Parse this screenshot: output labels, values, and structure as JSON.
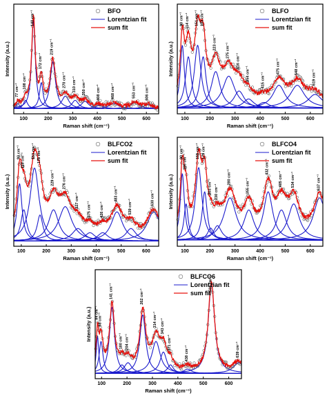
{
  "colors": {
    "lorentzian": "#1a1acc",
    "sum": "#e8100c",
    "points": "#666666"
  },
  "chart_data": [
    {
      "type": "line",
      "id": "bfo",
      "legend": [
        "BFO",
        "Lorentzian fit",
        "sum fit"
      ],
      "xlabel": "Raman shift (cm⁻¹)",
      "ylabel": "Intensity (a.u.)",
      "xlim": [
        60,
        650
      ],
      "xticks": [
        100,
        200,
        300,
        400,
        500,
        600
      ],
      "baseline": 0.05,
      "peak_labels": [
        "77 cm⁻¹",
        "108 cm⁻¹",
        "140 cm⁻¹",
        "172 cm⁻¹",
        "219 cm⁻¹",
        "270 cm⁻¹",
        "310 cm⁻¹",
        "350 cm⁻¹",
        "408 cm⁻¹",
        "468 cm⁻¹",
        "553 cm⁻¹",
        "606 cm⁻¹"
      ],
      "peaks": [
        {
          "x": 77,
          "amp": 0.05,
          "w": 7
        },
        {
          "x": 108,
          "amp": 0.08,
          "w": 10
        },
        {
          "x": 140,
          "amp": 0.85,
          "w": 9
        },
        {
          "x": 172,
          "amp": 0.25,
          "w": 9
        },
        {
          "x": 219,
          "amp": 0.45,
          "w": 13
        },
        {
          "x": 270,
          "amp": 0.12,
          "w": 18
        },
        {
          "x": 310,
          "amp": 0.08,
          "w": 16
        },
        {
          "x": 350,
          "amp": 0.07,
          "w": 18
        },
        {
          "x": 408,
          "amp": 0.03,
          "w": 20
        },
        {
          "x": 468,
          "amp": 0.05,
          "w": 22
        },
        {
          "x": 553,
          "amp": 0.06,
          "w": 20
        },
        {
          "x": 606,
          "amp": 0.04,
          "w": 18
        }
      ]
    },
    {
      "type": "line",
      "id": "blfo",
      "legend": [
        "BLFO",
        "Lorentzian fit",
        "sum fit"
      ],
      "xlabel": "Raman shift (cm⁻¹)",
      "ylabel": "Intensity (a.u.)",
      "xlim": [
        70,
        650
      ],
      "xticks": [
        100,
        200,
        300,
        400,
        500,
        600
      ],
      "baseline": 0.05,
      "peak_labels": [
        "90 cm⁻¹",
        "114 cm⁻¹",
        "151 cm⁻¹",
        "173 cm⁻¹",
        "223 cm⁻¹",
        "275 cm⁻¹",
        "316 cm⁻¹",
        "354 cm⁻¹",
        "415 cm⁻¹",
        "475 cm⁻¹",
        "548 cm⁻¹",
        "619 cm⁻¹"
      ],
      "peaks": [
        {
          "x": 90,
          "amp": 0.55,
          "w": 10
        },
        {
          "x": 114,
          "amp": 0.45,
          "w": 14
        },
        {
          "x": 151,
          "amp": 0.55,
          "w": 16
        },
        {
          "x": 173,
          "amp": 0.45,
          "w": 14
        },
        {
          "x": 223,
          "amp": 0.32,
          "w": 22
        },
        {
          "x": 275,
          "amp": 0.28,
          "w": 30
        },
        {
          "x": 316,
          "amp": 0.15,
          "w": 25
        },
        {
          "x": 354,
          "amp": 0.08,
          "w": 25
        },
        {
          "x": 415,
          "amp": 0.05,
          "w": 25
        },
        {
          "x": 475,
          "amp": 0.2,
          "w": 30
        },
        {
          "x": 548,
          "amp": 0.2,
          "w": 35
        },
        {
          "x": 619,
          "amp": 0.12,
          "w": 35
        }
      ]
    },
    {
      "type": "line",
      "id": "blfco2",
      "legend": [
        "BLFCO2",
        "Lorentzian fit",
        "sum fit"
      ],
      "xlabel": "Raman shift (cm⁻¹)",
      "ylabel": "Intensity (a.u.)",
      "xlim": [
        70,
        650
      ],
      "xticks": [
        100,
        200,
        300,
        400,
        500,
        600
      ],
      "baseline": 0.05,
      "peak_labels": [
        "93 cm⁻¹",
        "110 cm⁻¹",
        "153 cm⁻¹",
        "175 cm⁻¹",
        "229 cm⁻¹",
        "276 cm⁻¹",
        "327 cm⁻¹",
        "375 cm⁻¹",
        "426 cm⁻¹",
        "483 cm⁻¹",
        "539 cm⁻¹",
        "630 cm⁻¹"
      ],
      "peaks": [
        {
          "x": 93,
          "amp": 0.55,
          "w": 12
        },
        {
          "x": 110,
          "amp": 0.3,
          "w": 14
        },
        {
          "x": 153,
          "amp": 0.7,
          "w": 22
        },
        {
          "x": 175,
          "amp": 0.25,
          "w": 14
        },
        {
          "x": 229,
          "amp": 0.3,
          "w": 25
        },
        {
          "x": 276,
          "amp": 0.33,
          "w": 32
        },
        {
          "x": 327,
          "amp": 0.12,
          "w": 28
        },
        {
          "x": 375,
          "amp": 0.08,
          "w": 25
        },
        {
          "x": 426,
          "amp": 0.08,
          "w": 25
        },
        {
          "x": 483,
          "amp": 0.28,
          "w": 28
        },
        {
          "x": 539,
          "amp": 0.12,
          "w": 25
        },
        {
          "x": 630,
          "amp": 0.28,
          "w": 32
        }
      ]
    },
    {
      "type": "line",
      "id": "blfco4",
      "legend": [
        "BLFCO4",
        "Lorentzian fit",
        "sum fit"
      ],
      "xlabel": "Raman shift (cm⁻¹)",
      "ylabel": "Intensity (a.u.)",
      "xlim": [
        70,
        650
      ],
      "xticks": [
        100,
        200,
        300,
        400,
        500,
        600
      ],
      "baseline": 0.05,
      "peak_labels": [
        "90 cm⁻¹",
        "105 cm⁻¹",
        "155 cm⁻¹",
        "179 cm⁻¹",
        "203 cm⁻¹",
        "230 cm⁻¹",
        "280 cm⁻¹",
        "355 cm⁻¹",
        "432 cm⁻¹",
        "485 cm⁻¹",
        "534 cm⁻¹",
        "637 cm⁻¹"
      ],
      "peaks": [
        {
          "x": 90,
          "amp": 0.55,
          "w": 10
        },
        {
          "x": 105,
          "amp": 0.3,
          "w": 10
        },
        {
          "x": 155,
          "amp": 0.6,
          "w": 16
        },
        {
          "x": 179,
          "amp": 0.4,
          "w": 12
        },
        {
          "x": 203,
          "amp": 0.1,
          "w": 15
        },
        {
          "x": 230,
          "amp": 0.12,
          "w": 20
        },
        {
          "x": 280,
          "amp": 0.35,
          "w": 30
        },
        {
          "x": 355,
          "amp": 0.25,
          "w": 25
        },
        {
          "x": 432,
          "amp": 0.4,
          "w": 22
        },
        {
          "x": 485,
          "amp": 0.25,
          "w": 25
        },
        {
          "x": 534,
          "amp": 0.3,
          "w": 28
        },
        {
          "x": 637,
          "amp": 0.35,
          "w": 30
        }
      ]
    },
    {
      "type": "line",
      "id": "blfco6",
      "legend": [
        "BLFCO6",
        "Lorentzian fit",
        "sum fit"
      ],
      "xlabel": "Raman shift (cm⁻¹)",
      "ylabel": "Intensity (a.u.)",
      "xlim": [
        75,
        650
      ],
      "xticks": [
        100,
        200,
        300,
        400,
        500,
        600
      ],
      "baseline": 0.05,
      "peak_labels": [
        "84 cm⁻¹",
        "98 cm⁻¹",
        "141 cm⁻¹",
        "180 cm⁻¹",
        "204 cm⁻¹",
        "262 cm⁻¹",
        "314 cm⁻¹",
        "343 cm⁻¹",
        "371 cm⁻¹",
        "438 cm⁻¹",
        "532 cm⁻¹",
        "639 cm⁻¹"
      ],
      "peaks": [
        {
          "x": 84,
          "amp": 0.35,
          "w": 6
        },
        {
          "x": 98,
          "amp": 0.3,
          "w": 9
        },
        {
          "x": 141,
          "amp": 0.62,
          "w": 12
        },
        {
          "x": 180,
          "amp": 0.08,
          "w": 15
        },
        {
          "x": 204,
          "amp": 0.1,
          "w": 18
        },
        {
          "x": 262,
          "amp": 0.55,
          "w": 14
        },
        {
          "x": 314,
          "amp": 0.3,
          "w": 20
        },
        {
          "x": 343,
          "amp": 0.2,
          "w": 16
        },
        {
          "x": 371,
          "amp": 0.08,
          "w": 14
        },
        {
          "x": 438,
          "amp": 0.04,
          "w": 18
        },
        {
          "x": 532,
          "amp": 0.85,
          "w": 15
        },
        {
          "x": 639,
          "amp": 0.1,
          "w": 25
        }
      ]
    }
  ]
}
